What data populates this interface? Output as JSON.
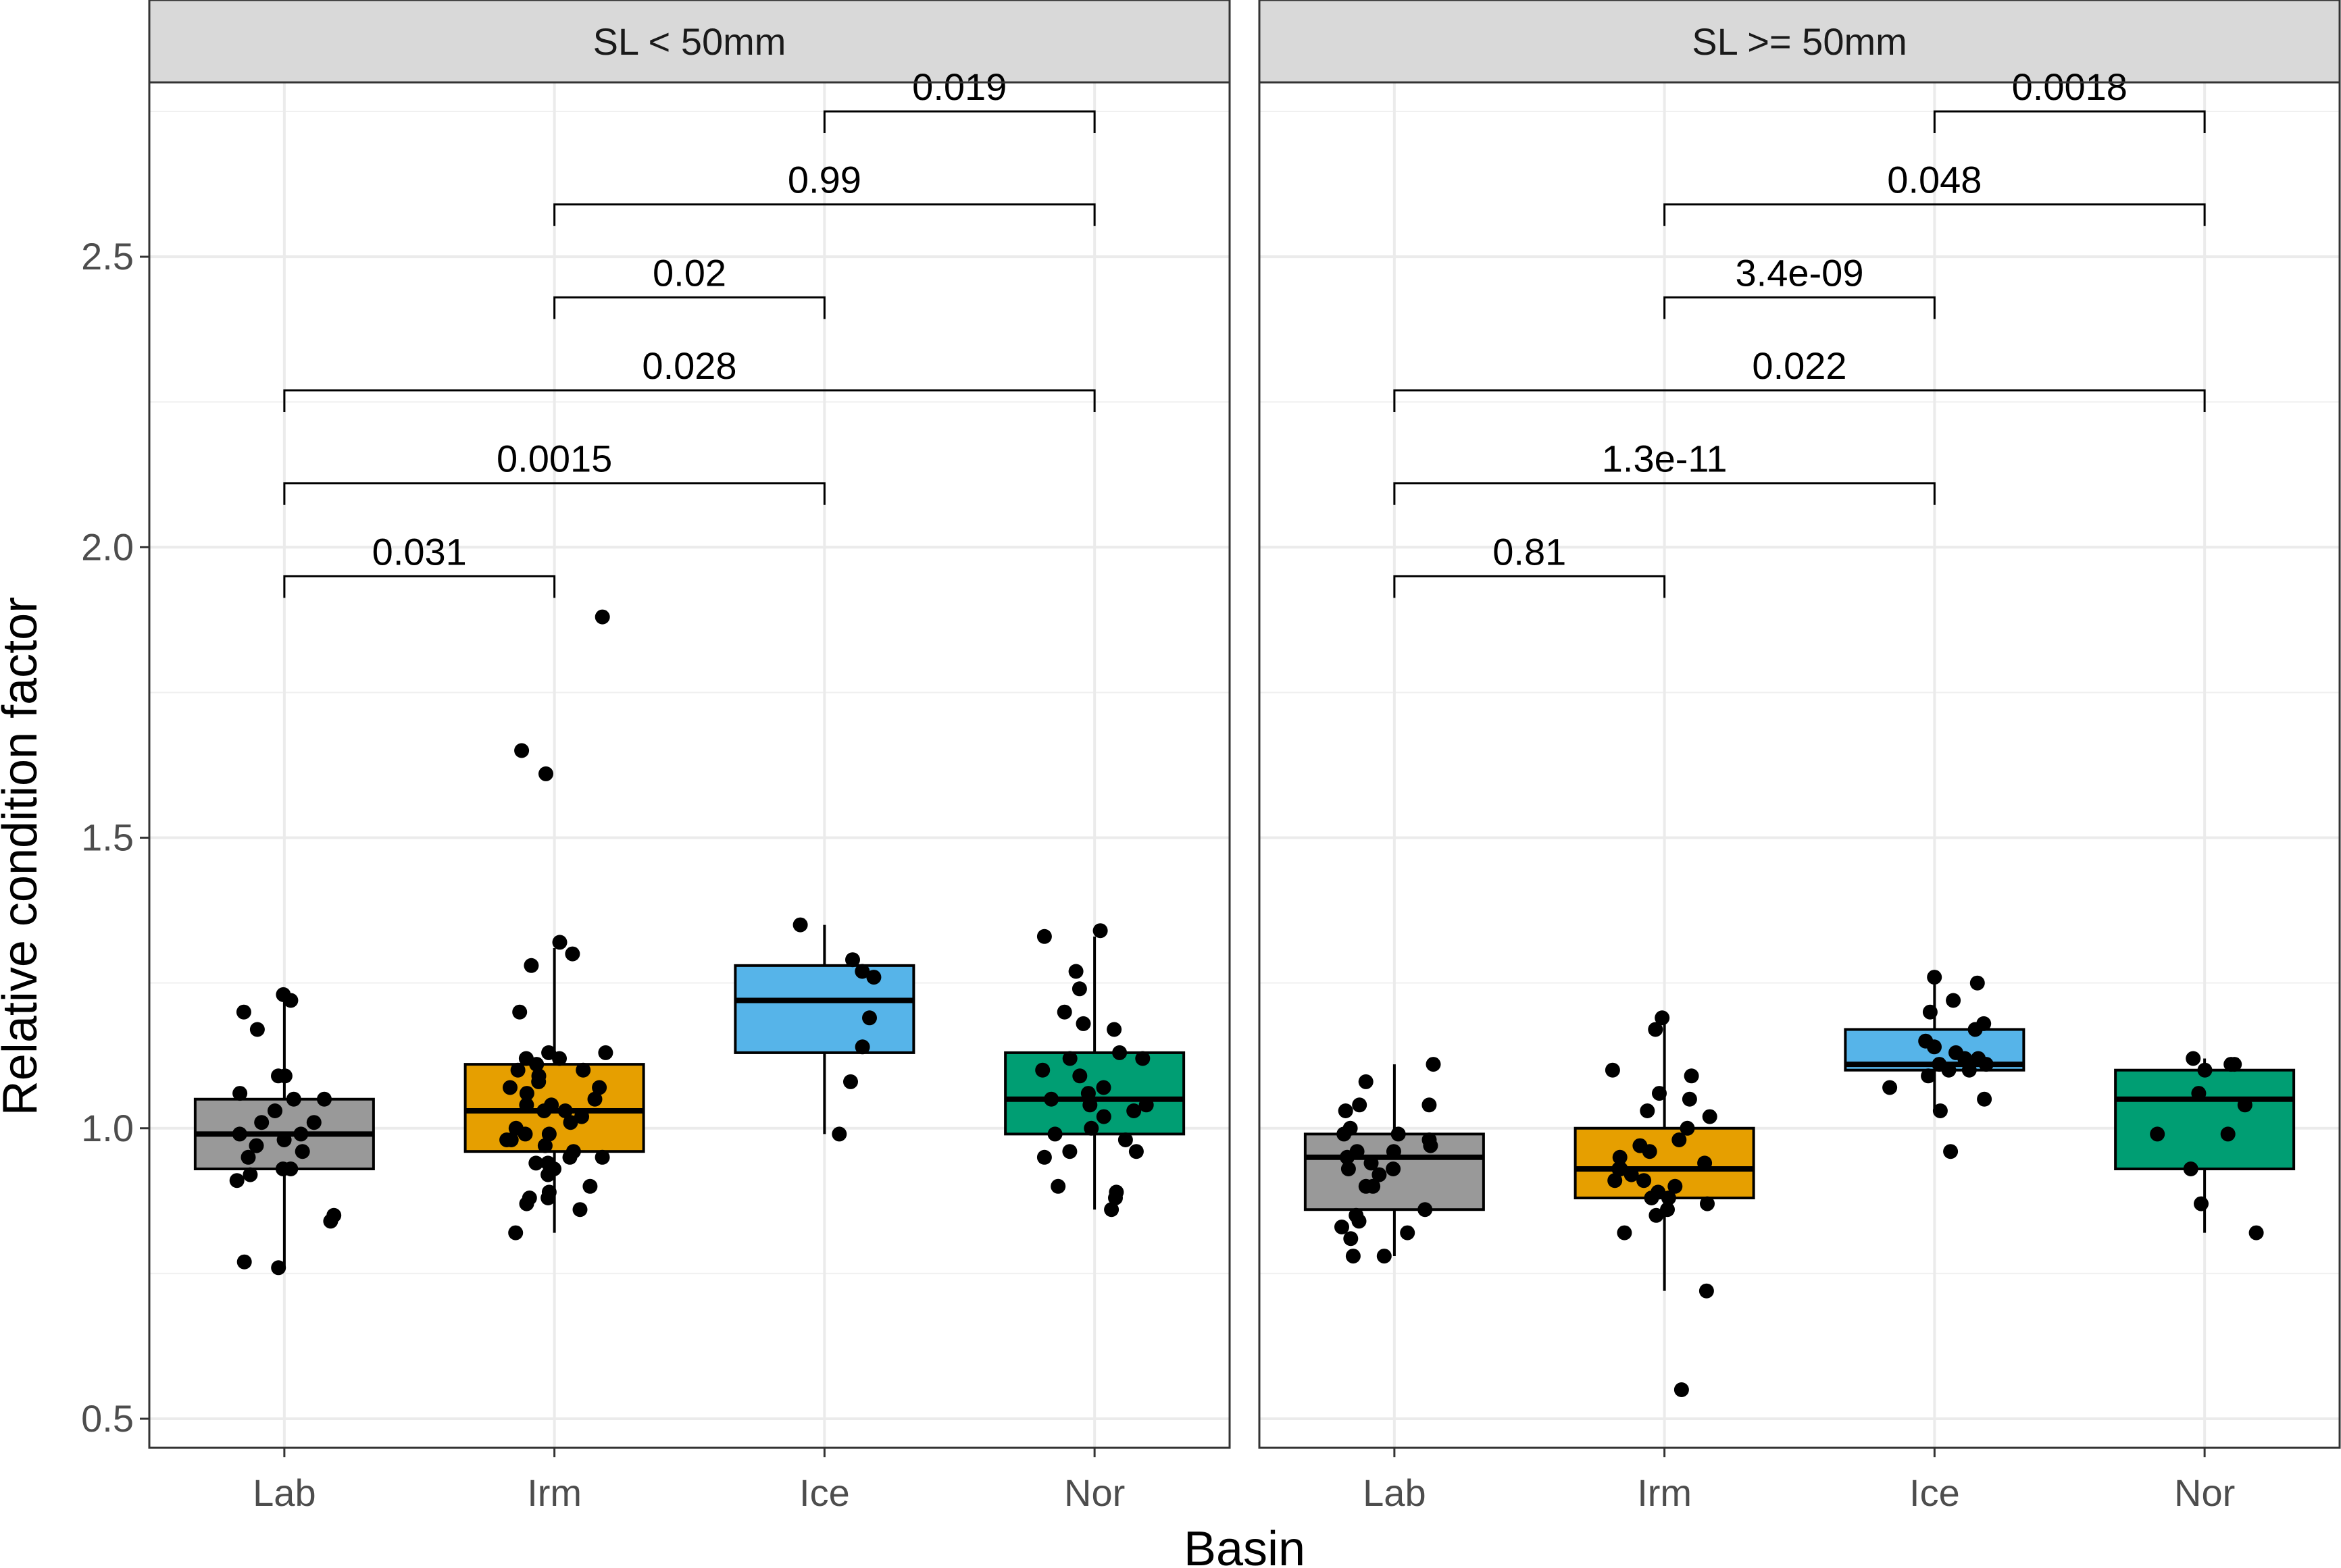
{
  "chart_data": {
    "type": "boxplot",
    "xlabel": "Basin",
    "ylabel": "Relative condition factor",
    "ylim": [
      0.45,
      2.8
    ],
    "yticks": [
      0.5,
      1.0,
      1.5,
      2.0,
      2.5
    ],
    "ytick_labels": [
      "0.5",
      "1.0",
      "1.5",
      "2.0",
      "2.5"
    ],
    "categories": [
      "Lab",
      "Irm",
      "Ice",
      "Nor"
    ],
    "colors": {
      "Lab": "#999999",
      "Irm": "#E69F00",
      "Ice": "#56B4E9",
      "Nor": "#009E73"
    },
    "panels": [
      {
        "title": "SL < 50mm",
        "boxes": [
          {
            "category": "Lab",
            "q1": 0.93,
            "median": 0.99,
            "q3": 1.05,
            "lower": 0.76,
            "upper": 1.22
          },
          {
            "category": "Irm",
            "q1": 0.96,
            "median": 1.03,
            "q3": 1.11,
            "lower": 0.82,
            "upper": 1.31
          },
          {
            "category": "Ice",
            "q1": 1.13,
            "median": 1.22,
            "q3": 1.28,
            "lower": 0.99,
            "upper": 1.35
          },
          {
            "category": "Nor",
            "q1": 0.99,
            "median": 1.05,
            "q3": 1.13,
            "lower": 0.86,
            "upper": 1.33
          }
        ],
        "points": {
          "Lab": [
            1.23,
            1.22,
            1.2,
            1.17,
            1.09,
            1.09,
            1.06,
            1.05,
            1.05,
            1.03,
            1.01,
            1.01,
            0.99,
            0.99,
            0.98,
            0.97,
            0.96,
            0.95,
            0.93,
            0.93,
            0.92,
            0.91,
            0.84,
            0.85,
            0.77,
            0.76
          ],
          "Irm": [
            1.88,
            1.65,
            1.61,
            1.32,
            1.3,
            1.28,
            1.2,
            1.13,
            1.13,
            1.12,
            1.12,
            1.11,
            1.1,
            1.1,
            1.09,
            1.08,
            1.07,
            1.07,
            1.06,
            1.05,
            1.04,
            1.04,
            1.03,
            1.03,
            1.02,
            1.01,
            1.0,
            0.99,
            0.99,
            0.98,
            0.98,
            0.97,
            0.96,
            0.95,
            0.95,
            0.94,
            0.94,
            0.93,
            0.92,
            0.9,
            0.89,
            0.88,
            0.88,
            0.87,
            0.86,
            0.82
          ],
          "Ice": [
            1.35,
            1.29,
            1.27,
            1.26,
            1.19,
            1.14,
            1.08,
            0.99
          ],
          "Nor": [
            1.34,
            1.33,
            1.27,
            1.24,
            1.2,
            1.18,
            1.17,
            1.13,
            1.12,
            1.12,
            1.1,
            1.09,
            1.07,
            1.06,
            1.05,
            1.04,
            1.04,
            1.03,
            1.02,
            1.0,
            0.99,
            0.98,
            0.96,
            0.96,
            0.95,
            0.9,
            0.89,
            0.88,
            0.86
          ]
        },
        "comparisons": [
          {
            "from": "Lab",
            "to": "Irm",
            "y": 1.95,
            "label": "0.031"
          },
          {
            "from": "Lab",
            "to": "Ice",
            "y": 2.11,
            "label": "0.0015"
          },
          {
            "from": "Lab",
            "to": "Nor",
            "y": 2.27,
            "label": "0.028"
          },
          {
            "from": "Irm",
            "to": "Ice",
            "y": 2.43,
            "label": "0.02"
          },
          {
            "from": "Irm",
            "to": "Nor",
            "y": 2.59,
            "label": "0.99"
          },
          {
            "from": "Ice",
            "to": "Nor",
            "y": 2.75,
            "label": "0.019"
          }
        ]
      },
      {
        "title": "SL >= 50mm",
        "boxes": [
          {
            "category": "Lab",
            "q1": 0.86,
            "median": 0.95,
            "q3": 0.99,
            "lower": 0.78,
            "upper": 1.11
          },
          {
            "category": "Irm",
            "q1": 0.88,
            "median": 0.93,
            "q3": 1.0,
            "lower": 0.72,
            "upper": 1.18
          },
          {
            "category": "Ice",
            "q1": 1.1,
            "median": 1.11,
            "q3": 1.17,
            "lower": 1.03,
            "upper": 1.26
          },
          {
            "category": "Nor",
            "q1": 0.93,
            "median": 1.05,
            "q3": 1.1,
            "lower": 0.82,
            "upper": 1.12
          }
        ],
        "points": {
          "Lab": [
            1.11,
            1.08,
            1.04,
            1.04,
            1.03,
            1.0,
            0.99,
            0.99,
            0.98,
            0.97,
            0.96,
            0.96,
            0.95,
            0.94,
            0.93,
            0.93,
            0.92,
            0.9,
            0.9,
            0.86,
            0.85,
            0.84,
            0.83,
            0.82,
            0.81,
            0.78,
            0.78
          ],
          "Irm": [
            1.19,
            1.17,
            1.1,
            1.09,
            1.06,
            1.05,
            1.03,
            1.02,
            1.0,
            0.98,
            0.97,
            0.96,
            0.95,
            0.94,
            0.93,
            0.93,
            0.92,
            0.91,
            0.91,
            0.9,
            0.89,
            0.88,
            0.88,
            0.87,
            0.86,
            0.85,
            0.82,
            0.72,
            0.55
          ],
          "Ice": [
            1.26,
            1.25,
            1.22,
            1.2,
            1.18,
            1.17,
            1.15,
            1.14,
            1.13,
            1.12,
            1.12,
            1.11,
            1.11,
            1.1,
            1.1,
            1.09,
            1.07,
            1.05,
            1.03,
            0.96
          ],
          "Nor": [
            1.12,
            1.11,
            1.11,
            1.1,
            1.06,
            1.04,
            0.99,
            0.99,
            0.93,
            0.87,
            0.82
          ]
        },
        "comparisons": [
          {
            "from": "Lab",
            "to": "Irm",
            "y": 1.95,
            "label": "0.81"
          },
          {
            "from": "Lab",
            "to": "Ice",
            "y": 2.11,
            "label": "1.3e-11"
          },
          {
            "from": "Lab",
            "to": "Nor",
            "y": 2.27,
            "label": "0.022"
          },
          {
            "from": "Irm",
            "to": "Ice",
            "y": 2.43,
            "label": "3.4e-09"
          },
          {
            "from": "Irm",
            "to": "Nor",
            "y": 2.59,
            "label": "0.048"
          },
          {
            "from": "Ice",
            "to": "Nor",
            "y": 2.75,
            "label": "0.0018"
          }
        ]
      }
    ]
  }
}
